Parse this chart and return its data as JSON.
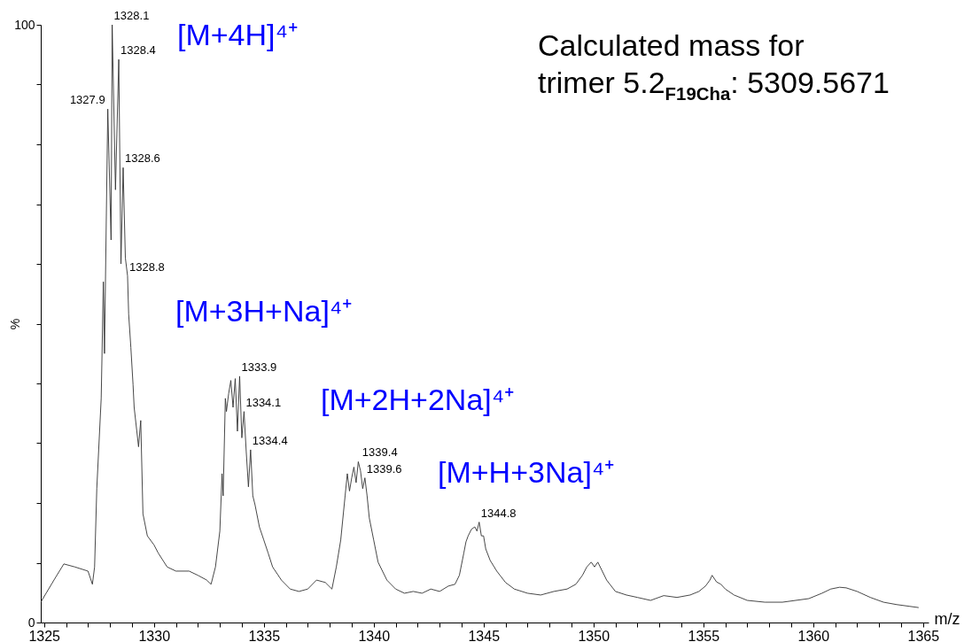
{
  "chart_data": {
    "type": "line",
    "xlabel": "m/z",
    "ylabel": "%",
    "xlim": [
      1324.85,
      1365.25
    ],
    "ylim": [
      0,
      100
    ],
    "xticks": [
      1325,
      {
        "value": 1326,
        "label": null
      },
      {
        "value": 1327,
        "label": null
      },
      {
        "value": 1328,
        "label": null
      },
      {
        "value": 1329,
        "label": null
      },
      1330,
      {
        "value": 1331,
        "label": null
      },
      {
        "value": 1332,
        "label": null
      },
      {
        "value": 1333,
        "label": null
      },
      {
        "value": 1334,
        "label": null
      },
      1335,
      {
        "value": 1336,
        "label": null
      },
      {
        "value": 1337,
        "label": null
      },
      {
        "value": 1338,
        "label": null
      },
      {
        "value": 1339,
        "label": null
      },
      1340,
      {
        "value": 1341,
        "label": null
      },
      {
        "value": 1342,
        "label": null
      },
      {
        "value": 1343,
        "label": null
      },
      {
        "value": 1344,
        "label": null
      },
      1345,
      {
        "value": 1346,
        "label": null
      },
      {
        "value": 1347,
        "label": null
      },
      {
        "value": 1348,
        "label": null
      },
      {
        "value": 1349,
        "label": null
      },
      1350,
      {
        "value": 1351,
        "label": null
      },
      {
        "value": 1352,
        "label": null
      },
      {
        "value": 1353,
        "label": null
      },
      {
        "value": 1354,
        "label": null
      },
      1355,
      {
        "value": 1356,
        "label": null
      },
      {
        "value": 1357,
        "label": null
      },
      {
        "value": 1358,
        "label": null
      },
      {
        "value": 1359,
        "label": null
      },
      1360,
      {
        "value": 1361,
        "label": null
      },
      {
        "value": 1362,
        "label": null
      },
      {
        "value": 1363,
        "label": null
      },
      {
        "value": 1364,
        "label": null
      },
      1365
    ],
    "yticks": [
      0,
      {
        "value": 10,
        "label": null
      },
      {
        "value": 20,
        "label": null
      },
      {
        "value": 30,
        "label": null
      },
      {
        "value": 40,
        "label": null
      },
      {
        "value": 50,
        "label": null
      },
      {
        "value": 60,
        "label": null
      },
      {
        "value": 70,
        "label": null
      },
      {
        "value": 80,
        "label": null
      },
      {
        "value": 90,
        "label": null
      },
      100
    ],
    "grid": false,
    "marker": "none",
    "line_style": "solid",
    "series": [
      {
        "color": "#333333",
        "x": [
          1324.85,
          1325.5,
          1325.9,
          1326.4,
          1327,
          1327.2,
          1327.3,
          1327.4,
          1327.6,
          1327.7,
          1327.75,
          1327.9,
          1328.05,
          1328.1,
          1328.25,
          1328.4,
          1328.5,
          1328.6,
          1328.7,
          1328.8,
          1328.85,
          1328.95,
          1329.05,
          1329.1,
          1329.3,
          1329.4,
          1329.5,
          1329.7,
          1330,
          1330.2,
          1330.6,
          1331,
          1331.6,
          1332,
          1332.4,
          1332.6,
          1332.8,
          1333,
          1333.1,
          1333.15,
          1333.25,
          1333.3,
          1333.4,
          1333.5,
          1333.6,
          1333.7,
          1333.8,
          1333.9,
          1334,
          1334.1,
          1334.2,
          1334.3,
          1334.4,
          1334.5,
          1334.6,
          1334.8,
          1335,
          1335.2,
          1335.4,
          1335.8,
          1336.2,
          1336.6,
          1337,
          1337.4,
          1337.8,
          1338.1,
          1338.3,
          1338.5,
          1338.7,
          1338.8,
          1338.9,
          1339,
          1339.1,
          1339.2,
          1339.3,
          1339.4,
          1339.5,
          1339.6,
          1339.7,
          1339.8,
          1340,
          1340.2,
          1340.6,
          1341,
          1341.4,
          1341.8,
          1342.2,
          1342.6,
          1343,
          1343.4,
          1343.7,
          1343.9,
          1344.1,
          1344.2,
          1344.3,
          1344.45,
          1344.6,
          1344.7,
          1344.8,
          1344.9,
          1345,
          1345.1,
          1345.3,
          1345.6,
          1346,
          1346.4,
          1347,
          1347.6,
          1348.2,
          1348.8,
          1349.2,
          1349.5,
          1349.7,
          1349.9,
          1350.05,
          1350.2,
          1350.4,
          1350.6,
          1351,
          1351.5,
          1352,
          1352.6,
          1353.2,
          1353.8,
          1354.4,
          1354.8,
          1355.1,
          1355.3,
          1355.4,
          1355.6,
          1355.8,
          1356,
          1356.4,
          1357,
          1357.8,
          1358.6,
          1359.2,
          1359.8,
          1360.4,
          1360.8,
          1361.2,
          1361.5,
          1362,
          1362.6,
          1363.2,
          1363.8,
          1364.4,
          1364.8
        ],
        "values": [
          3.4,
          7.4,
          9.8,
          9.3,
          8.6,
          6.4,
          9.3,
          22.4,
          37.5,
          57,
          45,
          85.9,
          64,
          100,
          72.4,
          94.2,
          60,
          76.1,
          61,
          58,
          51.6,
          46,
          39.8,
          36,
          29.4,
          33.8,
          18.2,
          14.5,
          13,
          11.6,
          9.3,
          8.6,
          8.6,
          7.9,
          7.1,
          6.4,
          9.3,
          15.3,
          24.9,
          21.2,
          37.5,
          35.3,
          38.3,
          40.5,
          36,
          40.8,
          32,
          41.2,
          30.9,
          35.3,
          28.6,
          22.7,
          28.9,
          21.2,
          19.7,
          16,
          13.8,
          11.6,
          9.3,
          7.1,
          5.6,
          5.2,
          5.6,
          7.1,
          6.7,
          5.6,
          9.3,
          13.8,
          21.2,
          24.9,
          22,
          24.2,
          26,
          23.4,
          26.9,
          25.4,
          22.4,
          24.2,
          21.2,
          17.5,
          13.8,
          10.1,
          7.1,
          5.6,
          4.9,
          5.2,
          4.9,
          5.6,
          5.2,
          6.1,
          6.4,
          7.9,
          11.6,
          13.5,
          14.5,
          15.6,
          16,
          15.3,
          16.8,
          14.5,
          14.5,
          12.3,
          10.4,
          8.6,
          6.7,
          5.6,
          4.9,
          4.6,
          5.2,
          5.6,
          6.4,
          7.9,
          9.3,
          10.1,
          9.3,
          10.1,
          8.6,
          7.1,
          5.2,
          4.6,
          4.2,
          3.7,
          4.5,
          4.2,
          4.6,
          5.2,
          6.1,
          7.1,
          7.9,
          6.8,
          6.4,
          5.6,
          4.6,
          3.7,
          3.4,
          3.4,
          3.7,
          4,
          4.9,
          5.6,
          5.9,
          5.8,
          5.2,
          4.2,
          3.4,
          3,
          2.7,
          2.5
        ]
      }
    ],
    "annotations": [
      {
        "text": "1327.9",
        "x": 1327.9,
        "y": 85.9
      },
      {
        "text": "1328.1",
        "x": 1328.1,
        "y": 100
      },
      {
        "text": "1328.4",
        "x": 1328.4,
        "y": 94.2
      },
      {
        "text": "1328.6",
        "x": 1328.6,
        "y": 76.1
      },
      {
        "text": "1328.8",
        "x": 1328.8,
        "y": 58
      },
      {
        "text": "1333.9",
        "x": 1333.9,
        "y": 41.2
      },
      {
        "text": "1334.1",
        "x": 1334.1,
        "y": 35.3
      },
      {
        "text": "1334.4",
        "x": 1334.4,
        "y": 28.9
      },
      {
        "text": "1339.4",
        "x": 1339.4,
        "y": 26.9
      },
      {
        "text": "1339.6",
        "x": 1339.6,
        "y": 24.2
      },
      {
        "text": "1344.8",
        "x": 1344.8,
        "y": 16.8
      },
      "[M+4H]⁴⁺",
      "[M+3H+Na]⁴⁺",
      "[M+2H+2Na]⁴⁺",
      "[M+H+3Na]⁴⁺",
      "Calculated mass for",
      "trimer 5.2$_{F19Cha}$: 5309.5671"
    ]
  }
}
